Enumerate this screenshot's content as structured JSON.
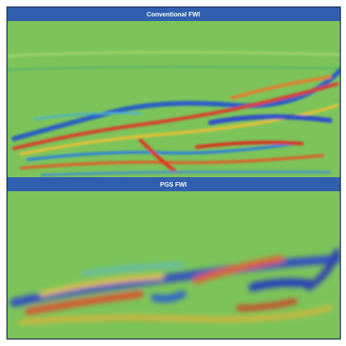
{
  "panels": [
    {
      "title": "Conventional FWI"
    },
    {
      "title": "PGS FWI"
    }
  ]
}
